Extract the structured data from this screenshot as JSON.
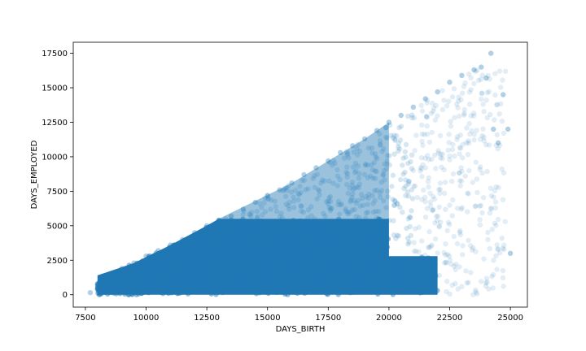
{
  "chart_data": {
    "type": "scatter",
    "title": "",
    "xlabel": "DAYS_BIRTH",
    "ylabel": "DAYS_EMPLOYED",
    "xlim": [
      7000,
      25700
    ],
    "ylim": [
      -900,
      18300
    ],
    "xticks": [
      7500,
      10000,
      12500,
      15000,
      17500,
      20000,
      22500,
      25000
    ],
    "yticks": [
      0,
      2500,
      5000,
      7500,
      10000,
      12500,
      15000,
      17500
    ],
    "grid": false,
    "legend": "none",
    "marker_color": "#1f77b4",
    "marker_alpha": 0.08,
    "x": [
      7700,
      8000,
      8200,
      8500,
      9000,
      9500,
      10000,
      10500,
      11000,
      11500,
      12000,
      12500,
      13000,
      13500,
      14000,
      14500,
      15000,
      15500,
      16000,
      16500,
      17000,
      17500,
      18000,
      18500,
      19000,
      19500,
      20000,
      20500,
      21000,
      21500,
      22000,
      22500,
      23000,
      23500,
      23800,
      24000,
      24200,
      24300,
      24500,
      24700,
      24900,
      25000
    ],
    "y": [
      150,
      800,
      1200,
      1500,
      1900,
      2300,
      2800,
      3200,
      3600,
      4000,
      4500,
      5000,
      5400,
      5700,
      6200,
      6700,
      7200,
      7600,
      8100,
      8700,
      9200,
      9700,
      10300,
      10800,
      11300,
      11900,
      12500,
      13000,
      13600,
      14200,
      14700,
      15400,
      15900,
      16300,
      16500,
      15700,
      17500,
      12000,
      11000,
      14500,
      12000,
      3000
    ]
  }
}
